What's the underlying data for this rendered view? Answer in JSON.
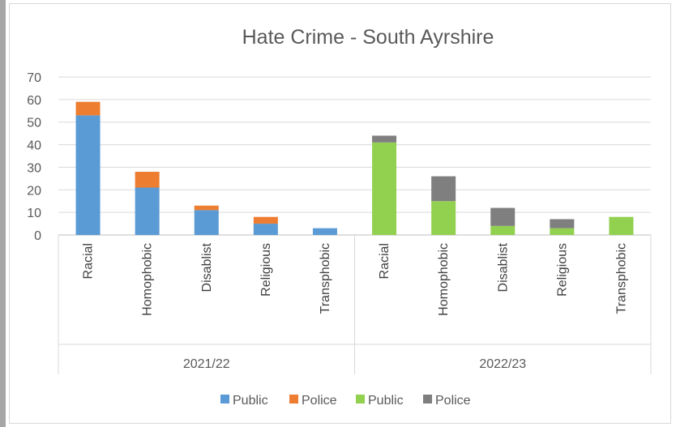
{
  "chart_data": {
    "type": "bar",
    "stacked": true,
    "title": "Hate Crime - South Ayrshire",
    "ylim": [
      0,
      70
    ],
    "yticks": [
      0,
      10,
      20,
      30,
      40,
      50,
      60,
      70
    ],
    "grid": true,
    "legend_position": "bottom",
    "groups": [
      {
        "label": "2021/22",
        "categories": [
          "Racial",
          "Homophobic",
          "Disablist",
          "Religious",
          "Transphobic"
        ],
        "series": [
          {
            "name": "Public",
            "color": "#5b9bd5",
            "values": [
              53,
              21,
              11,
              5,
              3
            ]
          },
          {
            "name": "Police",
            "color": "#ed7d31",
            "values": [
              6,
              7,
              2,
              3,
              0
            ]
          }
        ]
      },
      {
        "label": "2022/23",
        "categories": [
          "Racial",
          "Homophobic",
          "Disablist",
          "Religious",
          "Transphobic"
        ],
        "series": [
          {
            "name": "Public",
            "color": "#92d050",
            "values": [
              41,
              15,
              4,
              3,
              8
            ]
          },
          {
            "name": "Police",
            "color": "#7f7f7f",
            "values": [
              3,
              11,
              8,
              4,
              0
            ]
          }
        ]
      }
    ],
    "legend": [
      {
        "name": "Public",
        "color": "#5b9bd5"
      },
      {
        "name": "Police",
        "color": "#ed7d31"
      },
      {
        "name": "Public",
        "color": "#92d050"
      },
      {
        "name": "Police",
        "color": "#7f7f7f"
      }
    ]
  }
}
